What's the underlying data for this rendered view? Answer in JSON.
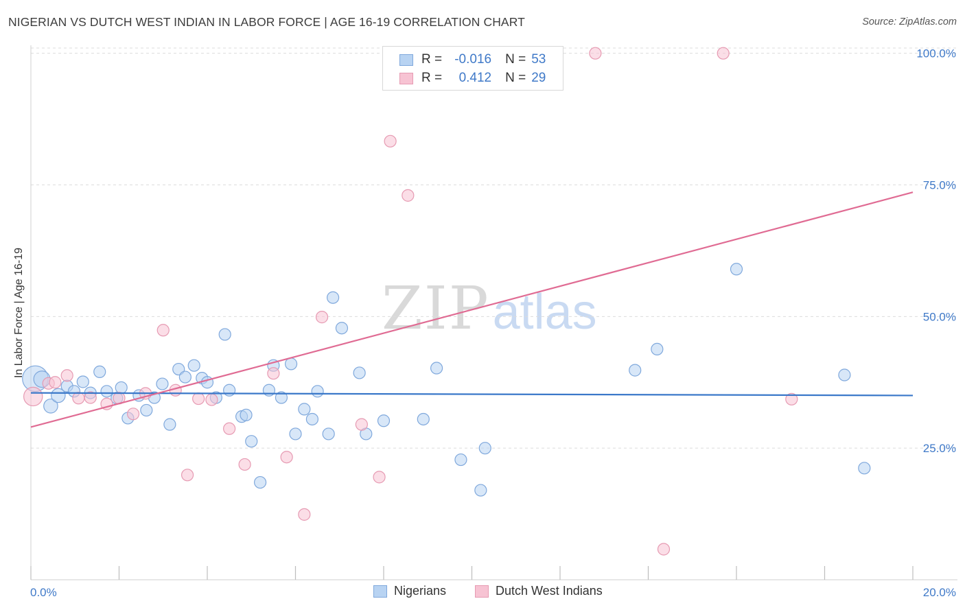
{
  "header": {
    "title": "NIGERIAN VS DUTCH WEST INDIAN IN LABOR FORCE | AGE 16-19 CORRELATION CHART",
    "source": "Source: ZipAtlas.com"
  },
  "watermark": {
    "zip": "ZIP",
    "atlas": "atlas"
  },
  "legend": {
    "rows": [
      {
        "r_label": "R =",
        "r_value": "-0.016",
        "n_label": "N =",
        "n_value": "53"
      },
      {
        "r_label": "R =",
        "r_value": "0.412",
        "n_label": "N =",
        "n_value": "29"
      }
    ]
  },
  "bottom_legend": {
    "series_1": "Nigerians",
    "series_2": "Dutch West Indians"
  },
  "colors": {
    "nigerians_fill": "#b8d3f2",
    "nigerians_stroke": "#7fa8dc",
    "nigerians_line": "#3a78c9",
    "dutch_fill": "#f7c3d3",
    "dutch_stroke": "#e69ab2",
    "dutch_line": "#e06b93",
    "grid": "#dcdcdc",
    "axis_text": "#3f79c8"
  },
  "chart_data": {
    "type": "scatter",
    "title": "NIGERIAN VS DUTCH WEST INDIAN IN LABOR FORCE | AGE 16-19 CORRELATION CHART",
    "xlabel": "",
    "ylabel": "In Labor Force | Age 16-19",
    "xlim": [
      0,
      20
    ],
    "ylim": [
      0,
      101
    ],
    "x_tick_labels": [
      "0.0%",
      "20.0%"
    ],
    "y_tick_labels": [
      "25.0%",
      "50.0%",
      "75.0%",
      "100.0%"
    ],
    "y_ticks": [
      25,
      50,
      75,
      100
    ],
    "grid": true,
    "legend_position": "top-center",
    "series": [
      {
        "name": "Nigerians",
        "r": -0.016,
        "n": 53,
        "trend": [
          [
            0,
            35.5
          ],
          [
            20,
            35.0
          ]
        ],
        "points": [
          [
            0.1,
            38.2,
            2.2
          ],
          [
            0.25,
            38.1,
            1.4
          ],
          [
            0.45,
            33.0,
            1.2
          ],
          [
            0.62,
            35.0,
            1.2
          ],
          [
            0.82,
            36.8,
            1.0
          ],
          [
            0.98,
            35.8,
            1.0
          ],
          [
            1.18,
            37.6,
            1.0
          ],
          [
            1.35,
            35.5,
            1.0
          ],
          [
            1.56,
            39.5,
            1.0
          ],
          [
            1.72,
            35.8,
            1.0
          ],
          [
            1.95,
            34.5,
            1.0
          ],
          [
            2.05,
            36.5,
            1.0
          ],
          [
            2.2,
            30.7,
            1.0
          ],
          [
            2.45,
            35.0,
            1.0
          ],
          [
            2.62,
            32.2,
            1.0
          ],
          [
            2.8,
            34.6,
            1.0
          ],
          [
            2.98,
            37.2,
            1.0
          ],
          [
            3.15,
            29.5,
            1.0
          ],
          [
            3.35,
            40.0,
            1.0
          ],
          [
            3.5,
            38.5,
            1.0
          ],
          [
            3.7,
            40.7,
            1.0
          ],
          [
            3.88,
            38.3,
            1.0
          ],
          [
            4.0,
            37.5,
            1.0
          ],
          [
            4.2,
            34.6,
            1.0
          ],
          [
            4.4,
            46.6,
            1.0
          ],
          [
            4.5,
            36.0,
            1.0
          ],
          [
            4.78,
            31.0,
            1.0
          ],
          [
            4.88,
            31.3,
            1.0
          ],
          [
            5.0,
            26.3,
            1.0
          ],
          [
            5.2,
            18.5,
            1.0
          ],
          [
            5.4,
            36.0,
            1.0
          ],
          [
            5.5,
            40.7,
            1.0
          ],
          [
            5.68,
            34.6,
            1.0
          ],
          [
            5.9,
            41.0,
            1.0
          ],
          [
            6.0,
            27.7,
            1.0
          ],
          [
            6.2,
            32.4,
            1.0
          ],
          [
            6.38,
            30.5,
            1.0
          ],
          [
            6.5,
            35.8,
            1.0
          ],
          [
            6.75,
            27.7,
            1.0
          ],
          [
            6.85,
            53.6,
            1.0
          ],
          [
            7.05,
            47.8,
            1.0
          ],
          [
            7.45,
            39.3,
            1.0
          ],
          [
            7.6,
            27.7,
            1.0
          ],
          [
            8.0,
            30.2,
            1.0
          ],
          [
            8.9,
            30.5,
            1.0
          ],
          [
            9.2,
            40.2,
            1.0
          ],
          [
            9.75,
            22.8,
            1.0
          ],
          [
            10.2,
            17.0,
            1.0
          ],
          [
            10.3,
            25.0,
            1.0
          ],
          [
            13.7,
            39.8,
            1.0
          ],
          [
            14.2,
            43.8,
            1.0
          ],
          [
            16.0,
            59.0,
            1.0
          ],
          [
            18.9,
            21.2,
            1.0
          ],
          [
            18.45,
            38.9,
            1.0
          ]
        ]
      },
      {
        "name": "Dutch West Indians",
        "r": 0.412,
        "n": 29,
        "trend": [
          [
            0,
            29.0
          ],
          [
            20,
            73.6
          ]
        ],
        "points": [
          [
            0.05,
            34.8,
            1.6
          ],
          [
            0.4,
            37.3,
            1.0
          ],
          [
            0.82,
            38.8,
            1.0
          ],
          [
            1.08,
            34.5,
            1.0
          ],
          [
            1.35,
            34.6,
            1.0
          ],
          [
            1.72,
            33.4,
            1.0
          ],
          [
            2.0,
            34.5,
            1.0
          ],
          [
            2.32,
            31.5,
            1.0
          ],
          [
            2.6,
            35.4,
            1.0
          ],
          [
            3.0,
            47.4,
            1.0
          ],
          [
            3.28,
            36.0,
            1.0
          ],
          [
            3.55,
            19.9,
            1.0
          ],
          [
            3.8,
            34.4,
            1.0
          ],
          [
            4.1,
            34.2,
            1.0
          ],
          [
            4.5,
            28.7,
            1.0
          ],
          [
            4.85,
            21.9,
            1.0
          ],
          [
            5.5,
            39.2,
            1.0
          ],
          [
            5.8,
            23.3,
            1.0
          ],
          [
            6.2,
            12.4,
            1.0
          ],
          [
            6.6,
            49.9,
            1.0
          ],
          [
            7.5,
            29.5,
            1.0
          ],
          [
            7.9,
            19.5,
            1.0
          ],
          [
            8.15,
            83.3,
            1.0
          ],
          [
            8.55,
            73.0,
            1.0
          ],
          [
            12.8,
            100.0,
            1.0
          ],
          [
            15.7,
            100.0,
            1.0
          ],
          [
            14.35,
            5.8,
            1.0
          ],
          [
            17.25,
            34.3,
            1.0
          ],
          [
            0.55,
            37.5,
            1.0
          ]
        ]
      }
    ]
  }
}
